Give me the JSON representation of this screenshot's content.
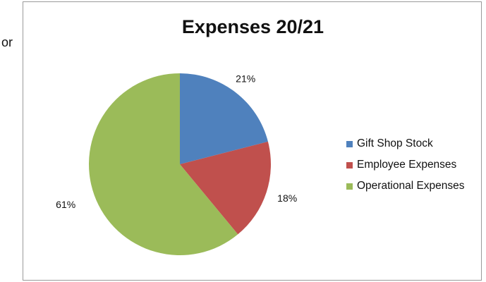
{
  "page_text": {
    "left_fragment": "or"
  },
  "chart_data": {
    "type": "pie",
    "title": "Expenses 20/21",
    "legend_position": "right",
    "categories": [
      "Gift Shop Stock",
      "Employee Expenses",
      "Operational Expenses"
    ],
    "values": [
      21,
      18,
      61
    ],
    "labels": [
      "21%",
      "18%",
      "61%"
    ],
    "colors": [
      "#4f81bd",
      "#c0504d",
      "#9bbb59"
    ]
  }
}
